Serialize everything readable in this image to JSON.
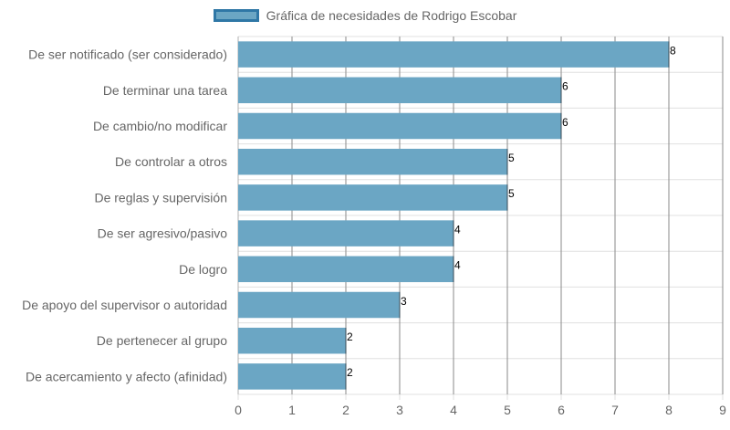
{
  "chart_data": {
    "type": "bar",
    "orientation": "horizontal",
    "categories": [
      "De ser notificado (ser considerado)",
      "De terminar una tarea",
      "De cambio/no modificar",
      "De controlar a otros",
      "De reglas y supervisión",
      "De ser agresivo/pasivo",
      "De logro",
      "De apoyo del supervisor o autoridad",
      "De pertenecer al grupo",
      "De acercamiento y afecto (afinidad)"
    ],
    "series": [
      {
        "name": "Gráfica de necesidades de Rodrigo Escobar",
        "values": [
          8,
          6,
          6,
          5,
          5,
          4,
          4,
          3,
          2,
          2
        ]
      }
    ],
    "xlim": [
      0,
      9
    ],
    "xticks": [
      "0",
      "1",
      "2",
      "3",
      "4",
      "5",
      "6",
      "7",
      "8",
      "9"
    ],
    "grid": true,
    "legend_position": "top-center",
    "data_labels": true,
    "colors": {
      "bar_fill": "#6ba6c4",
      "bar_border": "#2f77a6",
      "grid": "#e0e0e0",
      "grid_strong": "#8a8a8a",
      "text": "#666666"
    }
  }
}
